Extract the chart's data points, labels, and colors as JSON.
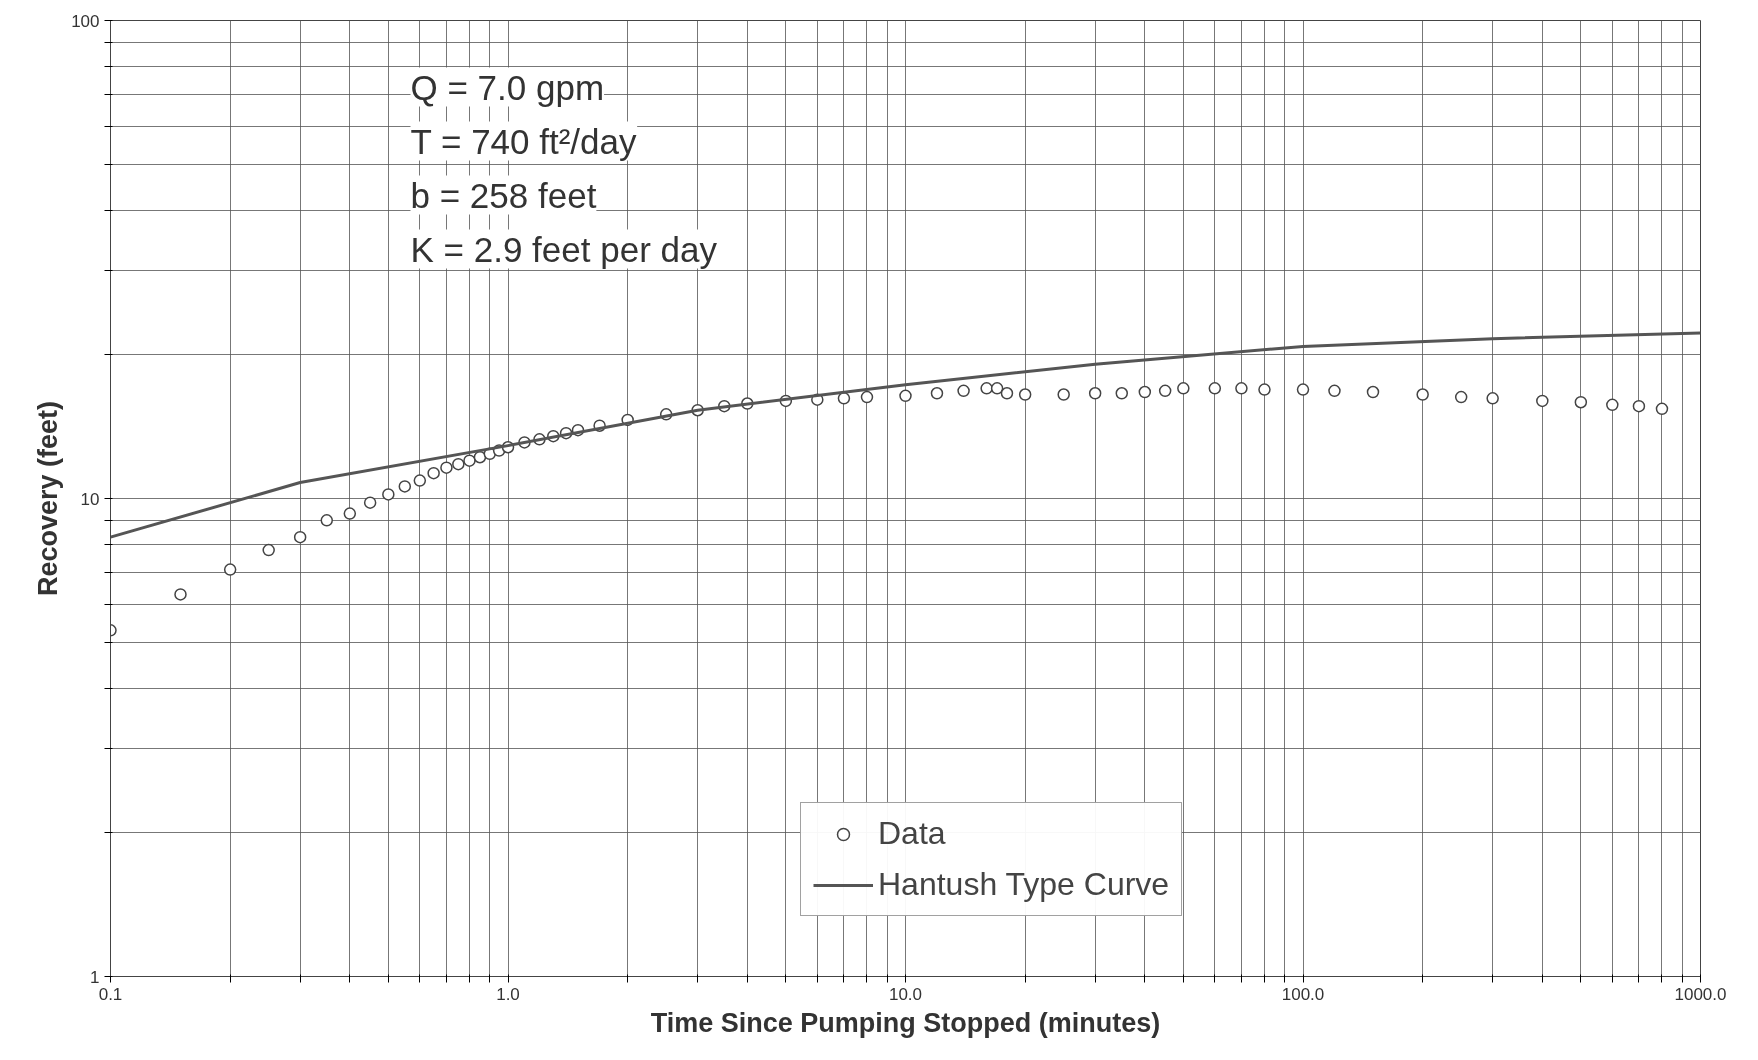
{
  "chart_data": {
    "type": "scatter",
    "xlabel": "Time Since Pumping Stopped (minutes)",
    "ylabel": "Recovery (feet)",
    "log": "xy",
    "grid": true,
    "legend": "bottom",
    "xlim": [
      0.1,
      1000
    ],
    "ylim": [
      1,
      100
    ],
    "xticks": [
      {
        "value": 0.1,
        "label": "0.1"
      },
      {
        "value": 0.2,
        "label": null
      },
      {
        "value": 0.3,
        "label": null
      },
      {
        "value": 0.4,
        "label": null
      },
      {
        "value": 0.5,
        "label": null
      },
      {
        "value": 0.6,
        "label": null
      },
      {
        "value": 0.7,
        "label": null
      },
      {
        "value": 0.8,
        "label": null
      },
      {
        "value": 0.9,
        "label": null
      },
      {
        "value": 1,
        "label": "1.0"
      },
      {
        "value": 2,
        "label": null
      },
      {
        "value": 3,
        "label": null
      },
      {
        "value": 4,
        "label": null
      },
      {
        "value": 5,
        "label": null
      },
      {
        "value": 6,
        "label": null
      },
      {
        "value": 7,
        "label": null
      },
      {
        "value": 8,
        "label": null
      },
      {
        "value": 9,
        "label": null
      },
      {
        "value": 10,
        "label": "10.0"
      },
      {
        "value": 20,
        "label": null
      },
      {
        "value": 30,
        "label": null
      },
      {
        "value": 40,
        "label": null
      },
      {
        "value": 50,
        "label": null
      },
      {
        "value": 60,
        "label": null
      },
      {
        "value": 70,
        "label": null
      },
      {
        "value": 80,
        "label": null
      },
      {
        "value": 90,
        "label": null
      },
      {
        "value": 100,
        "label": "100.0"
      },
      {
        "value": 200,
        "label": null
      },
      {
        "value": 300,
        "label": null
      },
      {
        "value": 400,
        "label": null
      },
      {
        "value": 500,
        "label": null
      },
      {
        "value": 600,
        "label": null
      },
      {
        "value": 700,
        "label": null
      },
      {
        "value": 800,
        "label": null
      },
      {
        "value": 900,
        "label": null
      },
      {
        "value": 1000,
        "label": "1000.0"
      }
    ],
    "yticks": [
      1,
      {
        "value": 2,
        "label": null
      },
      {
        "value": 3,
        "label": null
      },
      {
        "value": 4,
        "label": null
      },
      {
        "value": 5,
        "label": null
      },
      {
        "value": 6,
        "label": null
      },
      {
        "value": 7,
        "label": null
      },
      {
        "value": 8,
        "label": null
      },
      {
        "value": 9,
        "label": null
      },
      10,
      {
        "value": 20,
        "label": null
      },
      {
        "value": 30,
        "label": null
      },
      {
        "value": 40,
        "label": null
      },
      {
        "value": 50,
        "label": null
      },
      {
        "value": 60,
        "label": null
      },
      {
        "value": 70,
        "label": null
      },
      {
        "value": 80,
        "label": null
      },
      {
        "value": 90,
        "label": null
      },
      100
    ],
    "annotations": [
      "Q = 7.0 gpm",
      "T = 740 ft²/day",
      "b = 258 feet",
      "K = 2.9 feet per day"
    ],
    "series": [
      {
        "name": "Data",
        "marker": "circle",
        "color": "#444444",
        "x": [
          0.1,
          0.15,
          0.2,
          0.25,
          0.3,
          0.35,
          0.4,
          0.45,
          0.5,
          0.55,
          0.6,
          0.65,
          0.7,
          0.75,
          0.8,
          0.85,
          0.9,
          0.95,
          1.0,
          1.1,
          1.2,
          1.3,
          1.4,
          1.5,
          1.7,
          2.0,
          2.5,
          3.0,
          3.5,
          4,
          5,
          6,
          7,
          8,
          10,
          12,
          14,
          16,
          17,
          18,
          20,
          25,
          30,
          35,
          40,
          45,
          50,
          60,
          70,
          80,
          100,
          120,
          150,
          200,
          250,
          300,
          400,
          500,
          600,
          700,
          800
        ],
        "values": [
          5.3,
          6.3,
          7.1,
          7.8,
          8.3,
          9.0,
          9.3,
          9.8,
          10.2,
          10.6,
          10.9,
          11.3,
          11.6,
          11.8,
          12.0,
          12.2,
          12.4,
          12.6,
          12.8,
          13.1,
          13.3,
          13.5,
          13.7,
          13.9,
          14.2,
          14.6,
          15.0,
          15.3,
          15.6,
          15.8,
          16.0,
          16.1,
          16.2,
          16.3,
          16.4,
          16.6,
          16.8,
          17.0,
          17.0,
          16.6,
          16.5,
          16.5,
          16.6,
          16.6,
          16.7,
          16.8,
          17.0,
          17.0,
          17.0,
          16.9,
          16.9,
          16.8,
          16.7,
          16.5,
          16.3,
          16.2,
          16.0,
          15.9,
          15.7,
          15.6,
          15.4
        ]
      },
      {
        "name": "Hantush Type Curve",
        "type": "line",
        "line_style": "solid",
        "color": "#555555",
        "x": [
          0.1,
          0.3,
          1.0,
          3,
          10,
          30,
          100,
          300,
          1000
        ],
        "values": [
          8.3,
          10.8,
          12.9,
          15.3,
          17.3,
          19.1,
          20.8,
          21.6,
          22.2
        ]
      }
    ]
  }
}
